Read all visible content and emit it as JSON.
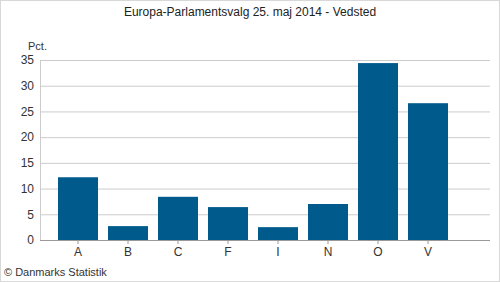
{
  "chart_data": {
    "type": "bar",
    "title": "Europa-Parlamentsvalg 25. maj 2014 - Vedsted",
    "y_label": "Pct.",
    "source": "© Danmarks Statistik",
    "categories": [
      "A",
      "B",
      "C",
      "F",
      "I",
      "N",
      "O",
      "V"
    ],
    "values": [
      12.2,
      2.7,
      8.4,
      6.4,
      2.5,
      7.0,
      34.4,
      26.6
    ],
    "color": "#005b8c",
    "ylim": [
      0,
      35
    ],
    "yticks": [
      0,
      5,
      10,
      15,
      20,
      25,
      30,
      35
    ],
    "grid": true
  }
}
